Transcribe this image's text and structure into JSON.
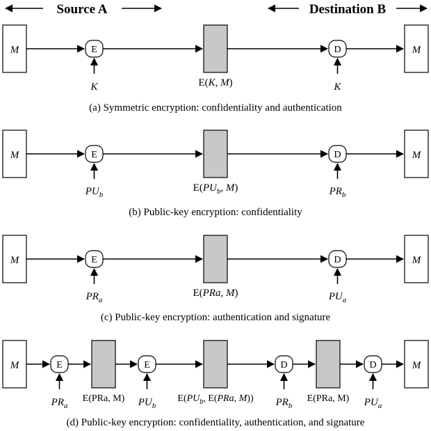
{
  "header": {
    "source": "Source A",
    "destination": "Destination B"
  },
  "labels": {
    "message": "M",
    "encrypt": "E",
    "decrypt": "D"
  },
  "panels": [
    {
      "caption": "(a) Symmetric encryption: confidentiality and authentication",
      "enc_key": {
        "base": "K",
        "sub": ""
      },
      "dec_key": {
        "base": "K",
        "sub": ""
      },
      "cipher_label": {
        "pre": "E(",
        "a": "K",
        "asub": "",
        "mid": ", ",
        "b": "M",
        "post": ")"
      }
    },
    {
      "caption": "(b) Public-key encryption: confidentiality",
      "enc_key": {
        "base": "PU",
        "sub": "b"
      },
      "dec_key": {
        "base": "PR",
        "sub": "b"
      },
      "cipher_label": {
        "pre": "E(",
        "a": "PU",
        "asub": "b",
        "mid": ", ",
        "b": "M",
        "post": ")"
      }
    },
    {
      "caption": "(c) Public-key encryption: authentication and signature",
      "enc_key": {
        "base": "PR",
        "sub": "a"
      },
      "dec_key": {
        "base": "PU",
        "sub": "a"
      },
      "cipher_label": {
        "pre": "E(",
        "a": "PRa",
        "asub": "",
        "mid": ", ",
        "b": "M",
        "post": ")"
      }
    }
  ],
  "panel_d": {
    "caption": "(d) Public-key encryption: confidentiality, authentication, and signature",
    "keys": [
      {
        "base": "PR",
        "sub": "a"
      },
      {
        "base": "PU",
        "sub": "b"
      },
      {
        "base": "PR",
        "sub": "b"
      },
      {
        "base": "PU",
        "sub": "a"
      }
    ],
    "cipher1": "E(PRa, M)",
    "cipher2": {
      "pre": "E(",
      "a": "PU",
      "asub": "b",
      "mid": ", E(",
      "b": "PRa",
      "c": "M",
      "post": "))"
    },
    "cipher3": "E(PRa, M)"
  }
}
